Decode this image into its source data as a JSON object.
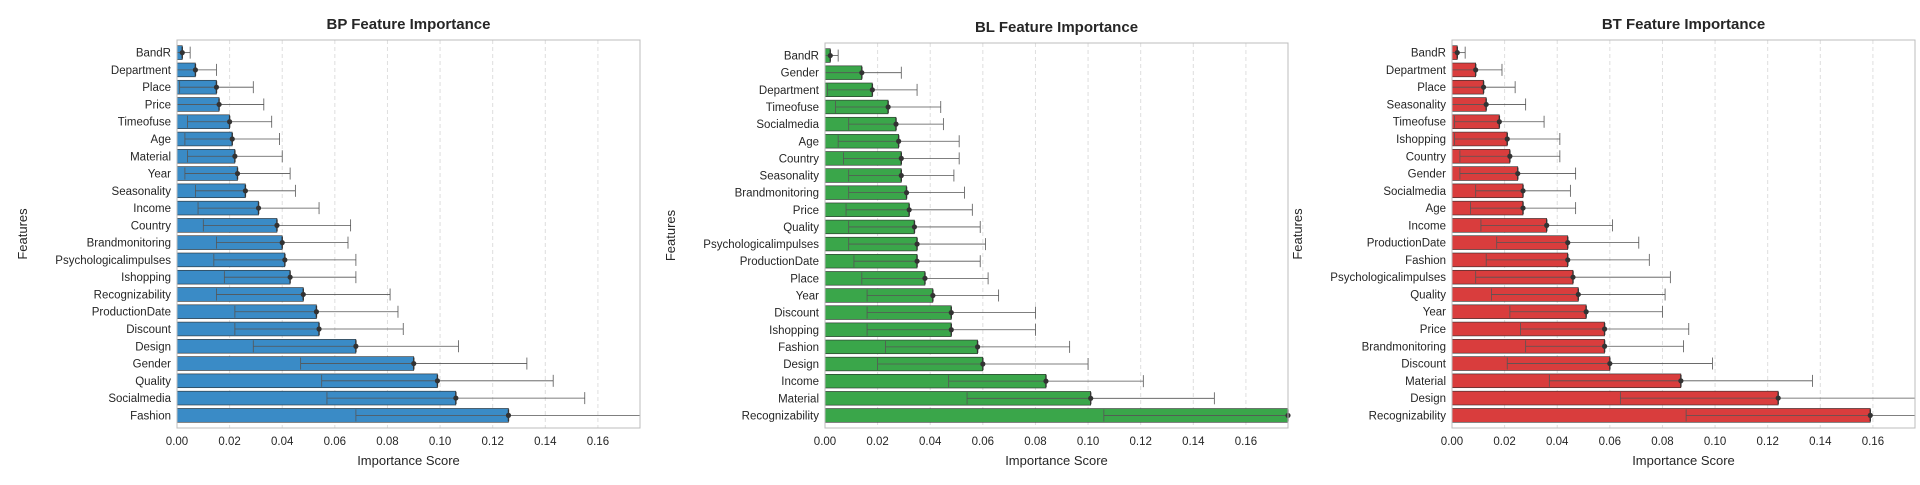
{
  "chart_data": [
    {
      "type": "bar",
      "orientation": "horizontal",
      "title": "BP Feature Importance",
      "xlabel": "Importance Score",
      "ylabel": "Features",
      "color": "#3a8bc6",
      "xlim": [
        0,
        0.176
      ],
      "xticks": [
        "0.00",
        "0.02",
        "0.04",
        "0.06",
        "0.08",
        "0.10",
        "0.12",
        "0.14",
        "0.16"
      ],
      "grid": true,
      "categories": [
        "BandR",
        "Department",
        "Place",
        "Price",
        "Timeofuse",
        "Age",
        "Material",
        "Year",
        "Seasonality",
        "Income",
        "Country",
        "Brandmonitoring",
        "Psychologicalimpulses",
        "Ishopping",
        "Recognizability",
        "ProductionDate",
        "Discount",
        "Design",
        "Gender",
        "Quality",
        "Socialmedia",
        "Fashion"
      ],
      "values": [
        0.002,
        0.007,
        0.015,
        0.016,
        0.02,
        0.021,
        0.022,
        0.023,
        0.026,
        0.031,
        0.038,
        0.04,
        0.041,
        0.043,
        0.048,
        0.053,
        0.054,
        0.068,
        0.09,
        0.099,
        0.106,
        0.126
      ],
      "errors": [
        0.003,
        0.008,
        0.014,
        0.017,
        0.016,
        0.018,
        0.018,
        0.02,
        0.019,
        0.023,
        0.028,
        0.025,
        0.027,
        0.025,
        0.033,
        0.031,
        0.032,
        0.039,
        0.043,
        0.044,
        0.049,
        0.058
      ]
    },
    {
      "type": "bar",
      "orientation": "horizontal",
      "title": "BL Feature Importance",
      "xlabel": "Importance Score",
      "ylabel": "Features",
      "color": "#3aa64a",
      "xlim": [
        0,
        0.176
      ],
      "xticks": [
        "0.00",
        "0.02",
        "0.04",
        "0.06",
        "0.08",
        "0.10",
        "0.12",
        "0.14",
        "0.16"
      ],
      "grid": true,
      "categories": [
        "BandR",
        "Gender",
        "Department",
        "Timeofuse",
        "Socialmedia",
        "Age",
        "Country",
        "Seasonality",
        "Brandmonitoring",
        "Price",
        "Quality",
        "Psychologicalimpulses",
        "ProductionDate",
        "Place",
        "Year",
        "Discount",
        "Ishopping",
        "Fashion",
        "Design",
        "Income",
        "Material",
        "Recognizability"
      ],
      "values": [
        0.002,
        0.014,
        0.018,
        0.024,
        0.027,
        0.028,
        0.029,
        0.029,
        0.031,
        0.032,
        0.034,
        0.035,
        0.035,
        0.038,
        0.041,
        0.048,
        0.048,
        0.058,
        0.06,
        0.084,
        0.101,
        0.176
      ],
      "errors": [
        0.003,
        0.015,
        0.017,
        0.02,
        0.018,
        0.023,
        0.022,
        0.02,
        0.022,
        0.024,
        0.025,
        0.026,
        0.024,
        0.024,
        0.025,
        0.032,
        0.032,
        0.035,
        0.04,
        0.037,
        0.047,
        0.07
      ]
    },
    {
      "type": "bar",
      "orientation": "horizontal",
      "title": "BT Feature Importance",
      "xlabel": "Importance Score",
      "ylabel": "Features",
      "color": "#d93d3d",
      "xlim": [
        0,
        0.176
      ],
      "xticks": [
        "0.00",
        "0.02",
        "0.04",
        "0.06",
        "0.08",
        "0.10",
        "0.12",
        "0.14",
        "0.16"
      ],
      "grid": true,
      "categories": [
        "BandR",
        "Department",
        "Place",
        "Seasonality",
        "Timeofuse",
        "Ishopping",
        "Country",
        "Gender",
        "Socialmedia",
        "Age",
        "Income",
        "ProductionDate",
        "Fashion",
        "Psychologicalimpulses",
        "Quality",
        "Year",
        "Price",
        "Brandmonitoring",
        "Discount",
        "Material",
        "Design",
        "Recognizability"
      ],
      "values": [
        0.002,
        0.009,
        0.012,
        0.013,
        0.018,
        0.021,
        0.022,
        0.025,
        0.027,
        0.027,
        0.036,
        0.044,
        0.044,
        0.046,
        0.048,
        0.051,
        0.058,
        0.058,
        0.06,
        0.087,
        0.124,
        0.159
      ],
      "errors": [
        0.003,
        0.01,
        0.012,
        0.015,
        0.017,
        0.02,
        0.019,
        0.022,
        0.018,
        0.02,
        0.025,
        0.027,
        0.031,
        0.037,
        0.033,
        0.029,
        0.032,
        0.03,
        0.039,
        0.05,
        0.06,
        0.07
      ]
    }
  ]
}
